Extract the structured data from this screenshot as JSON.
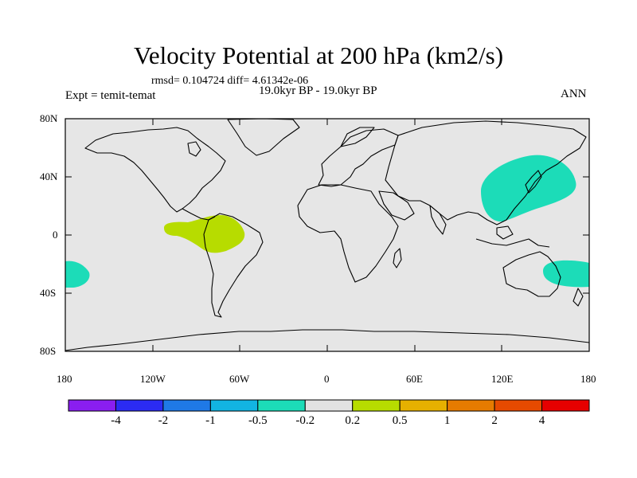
{
  "title": "Velocity Potential at 200 hPa (km2/s)",
  "stats": "rmsd= 0.104724 diff= 4.61342e-06",
  "period": "19.0kyr BP - 19.0kyr BP",
  "experiment": "Expt = temit-temat",
  "season": "ANN",
  "lat_labels": [
    "80N",
    "40N",
    "0",
    "40S",
    "80S"
  ],
  "lon_labels": [
    "180",
    "120W",
    "60W",
    "0",
    "60E",
    "120E",
    "180"
  ],
  "colorbar": {
    "labels": [
      "-4",
      "-2",
      "-1",
      "-0.5",
      "-0.2",
      "0.2",
      "0.5",
      "1",
      "2",
      "4"
    ],
    "colors": [
      "#8a1ef0",
      "#2b2bf2",
      "#1f79e6",
      "#12b4e2",
      "#1cdcb8",
      "#e2e2e2",
      "#b7dc00",
      "#e6b000",
      "#e67b00",
      "#e64a00",
      "#e60000"
    ]
  },
  "anomalies": [
    {
      "region": "tropical South America",
      "sign": "positive",
      "color": "#b7dc00"
    },
    {
      "region": "East Asia / NW Pacific",
      "sign": "negative",
      "color": "#1cdcb8"
    },
    {
      "region": "Eastern Australia / Tasman Sea",
      "sign": "negative",
      "color": "#1cdcb8"
    },
    {
      "region": "South Pacific near dateline",
      "sign": "negative",
      "color": "#1cdcb8"
    }
  ]
}
